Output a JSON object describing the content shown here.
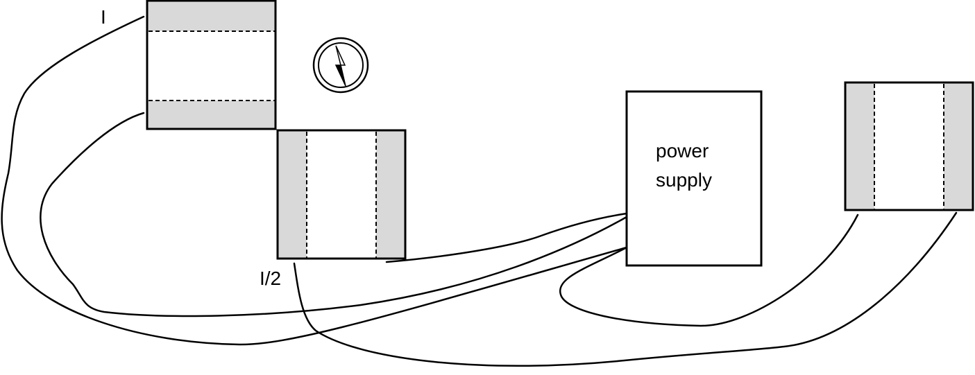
{
  "labels": {
    "current_full": "I",
    "current_half": "I/2",
    "power_supply_line1": "power",
    "power_supply_line2": "supply"
  },
  "colors": {
    "coil_fill": "#d9d9d9",
    "background": "#ffffff",
    "stroke": "#000000"
  },
  "icons": {
    "compass": "compass-icon"
  }
}
